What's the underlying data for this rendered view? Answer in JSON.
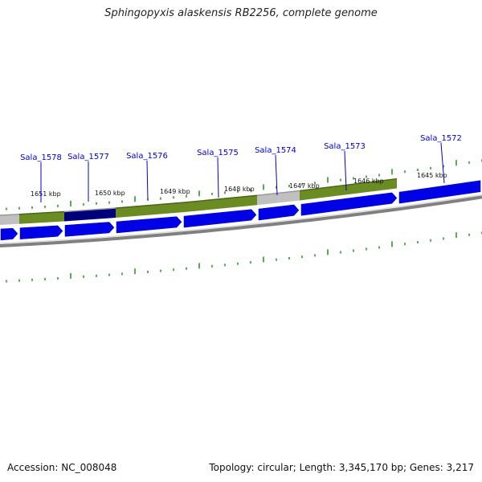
{
  "title": "Sphingopyxis alaskensis RB2256, complete genome",
  "footer": {
    "accession": "Accession: NC_008048",
    "summary": "Topology: circular; Length: 3,345,170 bp; Genes: 3,217"
  },
  "colors": {
    "forward_gene": "#0000e6",
    "forward_gene_dark": "#00007a",
    "feature_green": "#6b8c22",
    "feature_green_dark": "#4a6616",
    "feature_grey": "#c0c0c0",
    "backbone": "#808080",
    "tick": "#228b22",
    "label": "#0000cc"
  },
  "genes": [
    {
      "name": "Sala_1578"
    },
    {
      "name": "Sala_1577"
    },
    {
      "name": "Sala_1576"
    },
    {
      "name": "Sala_1575"
    },
    {
      "name": "Sala_1574"
    },
    {
      "name": "Sala_1573"
    },
    {
      "name": "Sala_1572"
    }
  ],
  "scale": [
    {
      "label": "1651 kbp"
    },
    {
      "label": "1650 kbp"
    },
    {
      "label": "1649 kbp"
    },
    {
      "label": "1648 kbp"
    },
    {
      "label": "1647 kbp"
    },
    {
      "label": "1646 kbp"
    },
    {
      "label": "1645 kbp"
    }
  ],
  "feature_track": [
    {
      "kind": "grey"
    },
    {
      "kind": "green"
    },
    {
      "kind": "blue"
    },
    {
      "kind": "green"
    },
    {
      "kind": "green"
    },
    {
      "kind": "grey"
    },
    {
      "kind": "green"
    }
  ],
  "gene_arrows": 9
}
